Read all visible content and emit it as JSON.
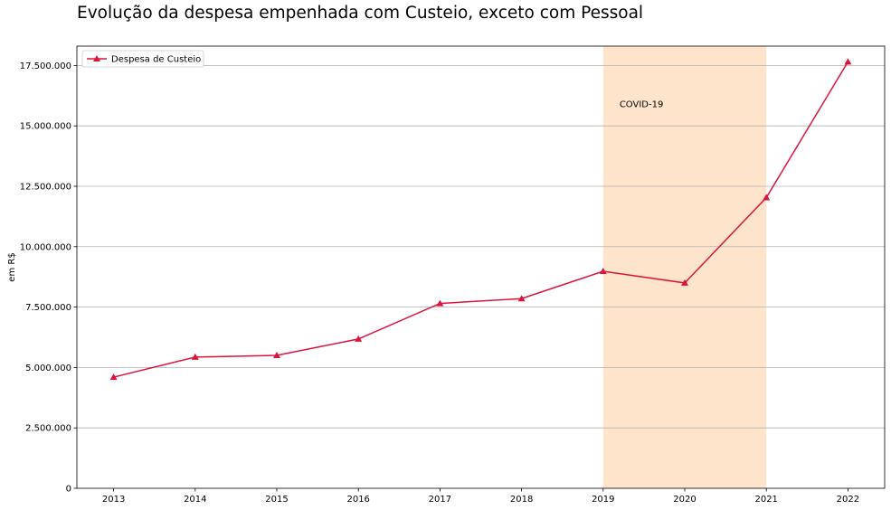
{
  "chart_data": {
    "type": "line",
    "title": "Evolução da despesa empenhada com Custeio, exceto com Pessoal",
    "xlabel": "",
    "ylabel": "em R$",
    "x": [
      2013,
      2014,
      2015,
      2016,
      2017,
      2018,
      2019,
      2020,
      2021,
      2022
    ],
    "x_tick_labels": [
      "2013",
      "2014",
      "2015",
      "2016",
      "2017",
      "2018",
      "2019",
      "2020",
      "2021",
      "2022"
    ],
    "y_ticks": [
      0,
      2500000,
      5000000,
      7500000,
      10000000,
      12500000,
      15000000,
      17500000
    ],
    "y_tick_labels": [
      "0",
      "2.500.000",
      "5.000.000",
      "7.500.000",
      "10.000.000",
      "12.500.000",
      "15.000.000",
      "17.500.000"
    ],
    "xlim": [
      2012.55,
      2022.45
    ],
    "ylim": [
      0,
      18300000
    ],
    "grid": "horizontal",
    "legend": "top-left",
    "series": [
      {
        "name": "Despesa de Custeio",
        "color": "#dc143c",
        "marker": "triangle",
        "values": [
          4600000,
          5430000,
          5500000,
          6180000,
          7650000,
          7850000,
          8980000,
          8500000,
          12030000,
          17650000
        ]
      }
    ],
    "highlight": {
      "x_start": 2019,
      "x_end": 2021,
      "color": "#ffe4cc",
      "label": "COVID-19",
      "label_x": 2019.2,
      "label_y": 15900000
    }
  }
}
